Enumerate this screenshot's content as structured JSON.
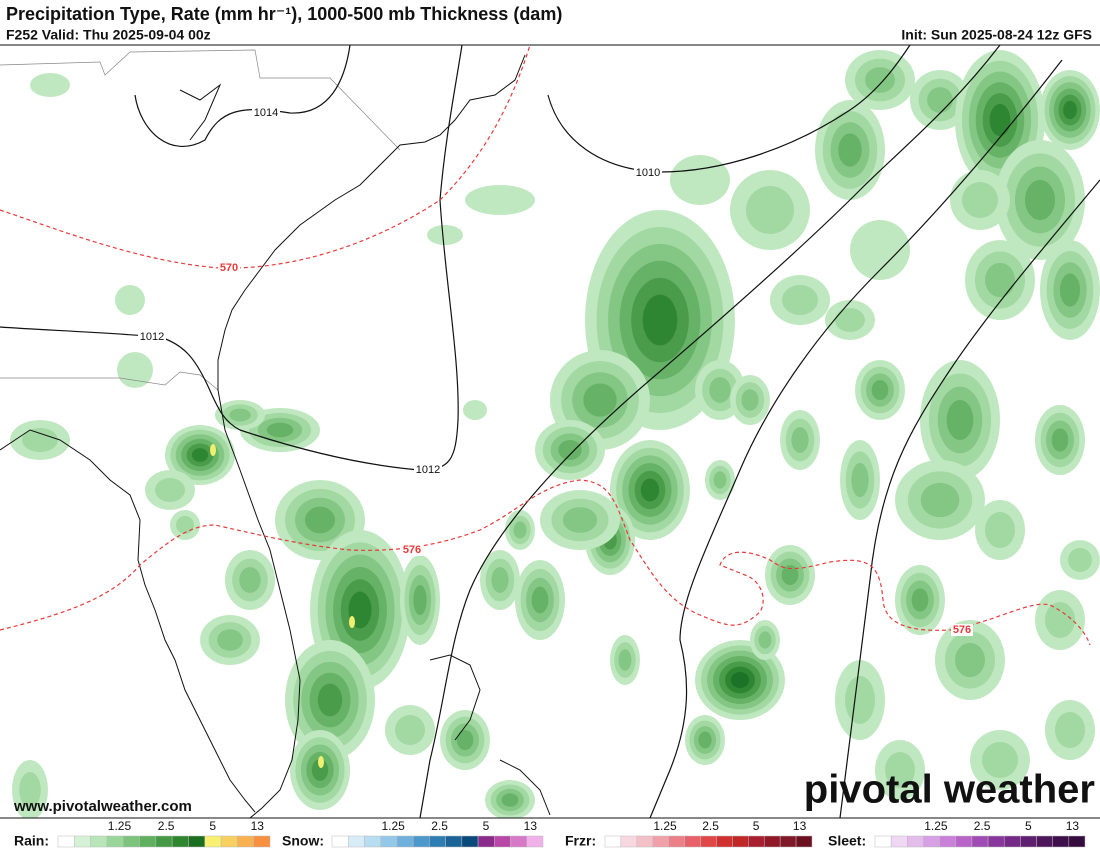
{
  "header": {
    "title": "Precipitation Type, Rate (mm hr⁻¹), 1000-500 mb Thickness (dam)",
    "valid": "F252 Valid: Thu 2025-09-04 00z",
    "init": "Init: Sun 2025-08-24 12z GFS"
  },
  "map": {
    "pressure_labels": [
      "1014",
      "1010",
      "1012",
      "1012"
    ],
    "thickness_labels": [
      "570",
      "576",
      "576"
    ],
    "watermark": "www.pivotalweather.com",
    "logo": "pivotal weather"
  },
  "legend": [
    {
      "label": "Rain:",
      "ticks": [
        1.25,
        2.5,
        5,
        13
      ],
      "colors": [
        "#ffffff",
        "#d6f2d6",
        "#b8e6b8",
        "#9ad69a",
        "#7cc47c",
        "#5eb05e",
        "#449a44",
        "#2e862e",
        "#1a7020",
        "#f8f070",
        "#f8d060",
        "#f8b050",
        "#f89040"
      ]
    },
    {
      "label": "Snow:",
      "ticks": [
        1.25,
        2.5,
        5,
        13
      ],
      "colors": [
        "#ffffff",
        "#d8ecf8",
        "#b8dcf0",
        "#94c8e8",
        "#70b0dc",
        "#4c98cc",
        "#2e7eb4",
        "#1a6498",
        "#0a4a7a",
        "#8a2a8a",
        "#b848a8",
        "#d878c8",
        "#f0b0e8"
      ]
    },
    {
      "label": "Frzr:",
      "ticks": [
        1.25,
        2.5,
        5,
        13
      ],
      "colors": [
        "#ffffff",
        "#f8d8e0",
        "#f4c0c8",
        "#f0a0a8",
        "#ec8088",
        "#e86068",
        "#e04848",
        "#d03030",
        "#c02828",
        "#a82030",
        "#901828",
        "#801828",
        "#6a1020"
      ]
    },
    {
      "label": "Sleet:",
      "ticks": [
        1.25,
        2.5,
        5,
        13
      ],
      "colors": [
        "#ffffff",
        "#f0d8f4",
        "#e4bcec",
        "#d8a0e4",
        "#c880d8",
        "#b864c8",
        "#a04cb4",
        "#88389c",
        "#742a86",
        "#601e70",
        "#4e165c",
        "#40104c",
        "#340c3e"
      ]
    }
  ]
}
